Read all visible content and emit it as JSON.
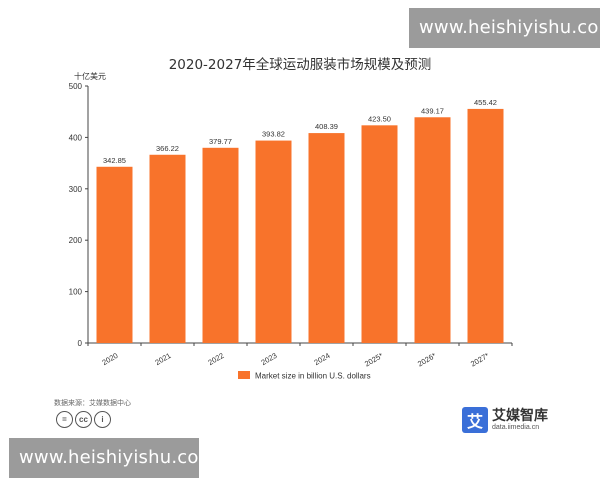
{
  "watermark": "www.heishiyishu.com",
  "source_text": "数据来源：艾媒数据中心",
  "brand": {
    "name": "艾媒智库",
    "url": "data.iimedia.cn",
    "mark": "艾"
  },
  "cc_icons": [
    "=",
    "cc",
    "i"
  ],
  "colors": {
    "bar": "#f8732b",
    "axis": "#444444",
    "text": "#333333"
  },
  "chart_data": {
    "type": "bar",
    "title": "2020-2027年全球运动服装市场规模及预测",
    "unit_label": "十亿美元",
    "categories": [
      "2020",
      "2021",
      "2022",
      "2023",
      "2024",
      "2025*",
      "2026*",
      "2027*"
    ],
    "series": [
      {
        "name": "Market size in billion U.S. dollars",
        "values": [
          342.85,
          366.22,
          379.77,
          393.82,
          408.39,
          423.5,
          439.17,
          455.42
        ],
        "labels": [
          "342.85",
          "366.22",
          "379.77",
          "393.82",
          "408.39",
          "423.50",
          "439.17",
          "455.42"
        ]
      }
    ],
    "ylim": [
      0,
      500
    ],
    "yticks": [
      0,
      100,
      200,
      300,
      400,
      500
    ],
    "legend": "bottom",
    "grid": false
  }
}
